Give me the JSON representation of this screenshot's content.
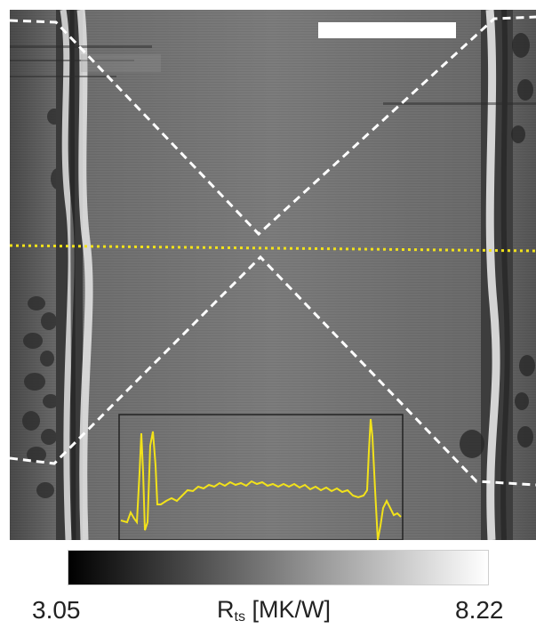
{
  "colorbar": {
    "min_label": "3.05",
    "max_label": "8.22",
    "title_main": "R",
    "title_sub": "ts",
    "title_unit": " [MK/W]",
    "gradient_start": "#000000",
    "gradient_end": "#ffffff"
  },
  "colors": {
    "profile_line": "#f2e21a",
    "guide_lines": "#ffffff",
    "inset_border": "#222222",
    "scale_bar": "#ffffff"
  },
  "overlays": {
    "has_scale_bar": true,
    "diagonal_guides": "white dashed X",
    "horizontal_guide": "yellow dotted line",
    "inset": "line profile plot"
  }
}
